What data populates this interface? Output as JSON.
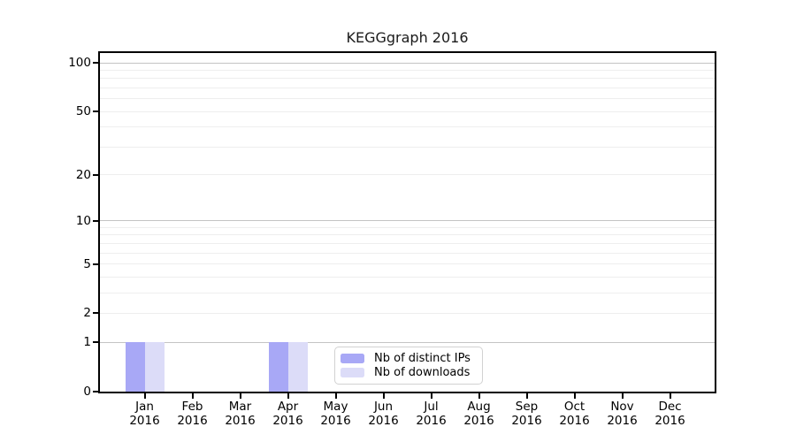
{
  "chart_data": {
    "type": "bar",
    "title": "KEGGgraph 2016",
    "scale": "log1p",
    "ylim": [
      0,
      115
    ],
    "y_ticks": [
      0,
      1,
      2,
      5,
      10,
      20,
      50,
      100
    ],
    "y_major_gridlines": [
      1,
      10,
      100
    ],
    "y_minor_gridlines": [
      2,
      3,
      4,
      5,
      6,
      7,
      8,
      9,
      20,
      30,
      40,
      50,
      60,
      70,
      80,
      90
    ],
    "grid": true,
    "categories": [
      "Jan",
      "Feb",
      "Mar",
      "Apr",
      "May",
      "Jun",
      "Jul",
      "Aug",
      "Sep",
      "Oct",
      "Nov",
      "Dec"
    ],
    "x_sublabel": "2016",
    "series": [
      {
        "name": "Nb of distinct IPs",
        "color": "#a8a8f6",
        "values": [
          1,
          0,
          0,
          1,
          0,
          0,
          0,
          0,
          0,
          0,
          0,
          0
        ]
      },
      {
        "name": "Nb of downloads",
        "color": "#dcdcf8",
        "values": [
          1,
          0,
          0,
          1,
          0,
          0,
          0,
          0,
          0,
          0,
          0,
          0
        ]
      }
    ],
    "legend_position": "bottom-center"
  },
  "colors": {
    "axis": "#000000",
    "grid_major": "#c4c4c4",
    "grid_minor": "#eeeeee",
    "legend_border": "#d2d2d2",
    "title_text": "#1a1a1a"
  }
}
